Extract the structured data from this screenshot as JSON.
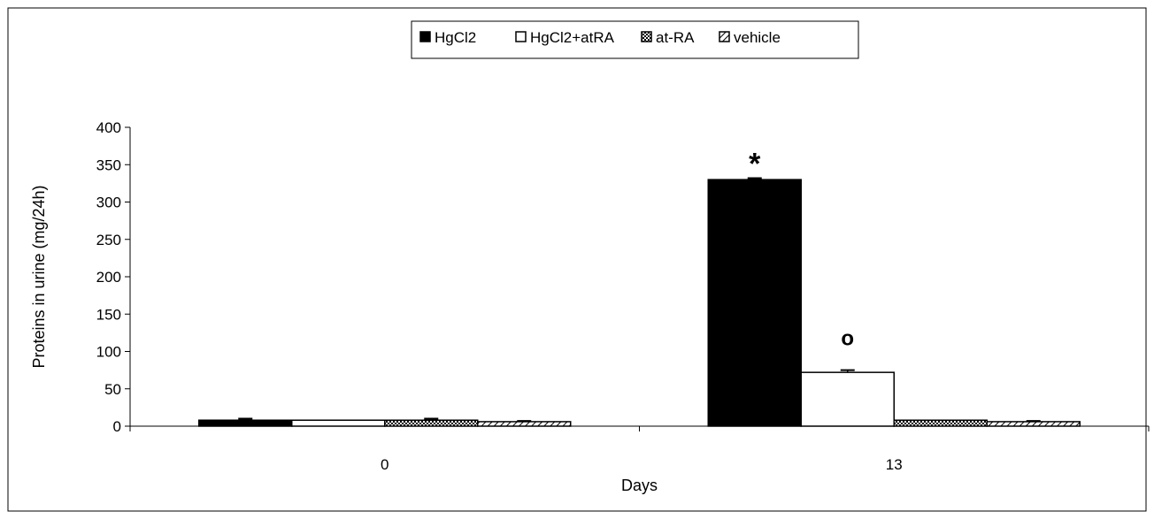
{
  "chart_data": {
    "type": "bar",
    "title": "",
    "xlabel": "Days",
    "ylabel": "Proteins in urine (mg/24h)",
    "categories": [
      "0",
      "13"
    ],
    "ylim": [
      0,
      400
    ],
    "yticks": [
      0,
      50,
      100,
      150,
      200,
      250,
      300,
      350,
      400
    ],
    "legend_position": "top-center",
    "grid": false,
    "series": [
      {
        "name": "HgCl2",
        "values": [
          8,
          330
        ],
        "errors": [
          2,
          2
        ],
        "fill": "solid",
        "color": "#000000"
      },
      {
        "name": "HgCl2+atRA",
        "values": [
          8,
          72
        ],
        "errors": [
          0,
          3
        ],
        "fill": "none",
        "color": "#ffffff"
      },
      {
        "name": "at-RA",
        "values": [
          8,
          8
        ],
        "errors": [
          2,
          0
        ],
        "fill": "checker",
        "color": "#000000"
      },
      {
        "name": "vehicle",
        "values": [
          6,
          6
        ],
        "errors": [
          1,
          1
        ],
        "fill": "diagonal",
        "color": "#000000"
      }
    ],
    "annotations": [
      {
        "text": "*",
        "category": "13",
        "series": "HgCl2"
      },
      {
        "text": "o",
        "category": "13",
        "series": "HgCl2+atRA"
      }
    ]
  }
}
